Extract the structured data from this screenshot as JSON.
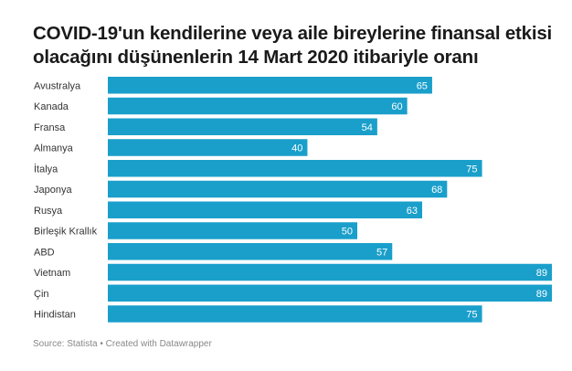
{
  "chart_data": {
    "type": "bar",
    "orientation": "horizontal",
    "title": "COVID-19'un kendilerine veya aile bireylerine finansal etkisi olacağını düşünenlerin 14 Mart 2020 itibariyle oranı",
    "categories": [
      "Avustralya",
      "Kanada",
      "Fransa",
      "Almanya",
      "İtalya",
      "Japonya",
      "Rusya",
      "Birleşik Krallık",
      "ABD",
      "Vietnam",
      "Çin",
      "Hindistan"
    ],
    "values": [
      65,
      60,
      54,
      40,
      75,
      68,
      63,
      50,
      57,
      89,
      89,
      75
    ],
    "xlim": [
      0,
      89
    ],
    "grid": false,
    "data_labels": true,
    "bar_color": "#1a9fcb",
    "label_color": "#ffffff"
  },
  "source": "Source: Statista • Created with Datawrapper"
}
